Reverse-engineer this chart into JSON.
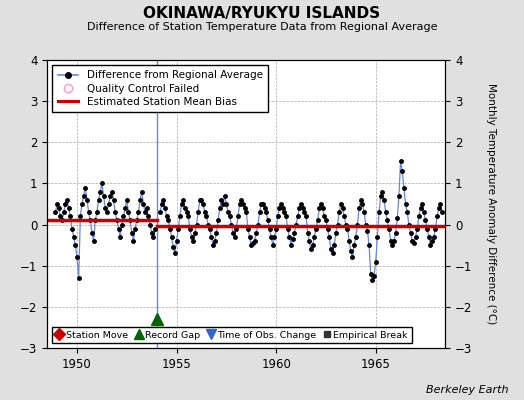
{
  "title": "OKINAWA/RYUKYU ISLANDS",
  "subtitle": "Difference of Station Temperature Data from Regional Average",
  "ylabel_right": "Monthly Temperature Anomaly Difference (°C)",
  "xlim": [
    1948.5,
    1968.5
  ],
  "ylim": [
    -3,
    4
  ],
  "yticks": [
    -3,
    -2,
    -1,
    0,
    1,
    2,
    3,
    4
  ],
  "xticks": [
    1950,
    1955,
    1960,
    1965
  ],
  "background_color": "#e0e0e0",
  "plot_bg_color": "#ffffff",
  "grid_color": "#aaaaaa",
  "line_color": "#6688dd",
  "marker_color": "#000000",
  "bias_color": "#cc0000",
  "vertical_line_x": 1954.0,
  "vertical_line_color": "#6688dd",
  "record_gap_x": 1954.0,
  "record_gap_y": -2.3,
  "bias_level_1": 0.1,
  "bias_x1_start": 1948.5,
  "bias_x1_end": 1954.0,
  "bias_level_2": -0.04,
  "bias_x2_start": 1954.0,
  "bias_x2_end": 1968.5,
  "watermark": "Berkeley Earth",
  "segment1_times": [
    1948.917,
    1949.0,
    1949.083,
    1949.167,
    1949.25,
    1949.333,
    1949.417,
    1949.5,
    1949.583,
    1949.667,
    1949.75,
    1949.833,
    1949.917,
    1950.0,
    1950.083,
    1950.167,
    1950.25,
    1950.333,
    1950.417,
    1950.5,
    1950.583,
    1950.667,
    1950.75,
    1950.833,
    1950.917,
    1951.0,
    1951.083,
    1951.167,
    1951.25,
    1951.333,
    1951.417,
    1951.5,
    1951.583,
    1951.667,
    1951.75,
    1951.833,
    1951.917,
    1952.0,
    1952.083,
    1952.167,
    1952.25,
    1952.333,
    1952.417,
    1952.5,
    1952.583,
    1952.667,
    1952.75,
    1952.833,
    1952.917,
    1953.0,
    1953.083,
    1953.167,
    1953.25,
    1953.333,
    1953.417,
    1953.5,
    1953.583,
    1953.667,
    1953.75,
    1953.833,
    1953.917
  ],
  "segment1_values": [
    0.3,
    0.5,
    0.4,
    0.2,
    0.1,
    0.3,
    0.5,
    0.6,
    0.4,
    0.2,
    -0.1,
    -0.3,
    -0.5,
    -0.8,
    -1.3,
    0.2,
    0.5,
    0.7,
    0.9,
    0.6,
    0.3,
    0.1,
    -0.2,
    -0.4,
    0.1,
    0.3,
    0.6,
    0.8,
    1.0,
    0.7,
    0.4,
    0.3,
    0.5,
    0.7,
    0.8,
    0.6,
    0.3,
    0.1,
    -0.1,
    -0.3,
    0.0,
    0.2,
    0.4,
    0.6,
    0.3,
    0.1,
    -0.2,
    -0.4,
    -0.1,
    0.1,
    0.3,
    0.6,
    0.8,
    0.5,
    0.3,
    0.4,
    0.2,
    0.0,
    -0.2,
    -0.3,
    -0.1
  ],
  "segment2_times": [
    1954.167,
    1954.25,
    1954.333,
    1954.417,
    1954.5,
    1954.583,
    1954.667,
    1954.75,
    1954.833,
    1954.917,
    1955.0,
    1955.083,
    1955.167,
    1955.25,
    1955.333,
    1955.417,
    1955.5,
    1955.583,
    1955.667,
    1955.75,
    1955.833,
    1955.917,
    1956.0,
    1956.083,
    1956.167,
    1956.25,
    1956.333,
    1956.417,
    1956.5,
    1956.583,
    1956.667,
    1956.75,
    1956.833,
    1956.917,
    1957.0,
    1957.083,
    1957.167,
    1957.25,
    1957.333,
    1957.417,
    1957.5,
    1957.583,
    1957.667,
    1957.75,
    1957.833,
    1957.917,
    1958.0,
    1958.083,
    1958.167,
    1958.25,
    1958.333,
    1958.417,
    1958.5,
    1958.583,
    1958.667,
    1958.75,
    1958.833,
    1958.917,
    1959.0,
    1959.083,
    1959.167,
    1959.25,
    1959.333,
    1959.417,
    1959.5,
    1959.583,
    1959.667,
    1959.75,
    1959.833,
    1959.917,
    1960.0,
    1960.083,
    1960.167,
    1960.25,
    1960.333,
    1960.417,
    1960.5,
    1960.583,
    1960.667,
    1960.75,
    1960.833,
    1960.917,
    1961.0,
    1961.083,
    1961.167,
    1961.25,
    1961.333,
    1961.417,
    1961.5,
    1961.583,
    1961.667,
    1961.75,
    1961.833,
    1961.917,
    1962.0,
    1962.083,
    1962.167,
    1962.25,
    1962.333,
    1962.417,
    1962.5,
    1962.583,
    1962.667,
    1962.75,
    1962.833,
    1962.917,
    1963.0,
    1963.083,
    1963.167,
    1963.25,
    1963.333,
    1963.417,
    1963.5,
    1963.583,
    1963.667,
    1963.75,
    1963.833,
    1963.917,
    1964.0,
    1964.083,
    1964.167,
    1964.25,
    1964.333,
    1964.417,
    1964.5,
    1964.583,
    1964.667,
    1964.75,
    1964.833,
    1964.917,
    1965.0,
    1965.083,
    1965.167,
    1965.25,
    1965.333,
    1965.417,
    1965.5,
    1965.583,
    1965.667,
    1965.75,
    1965.833,
    1965.917,
    1966.0,
    1966.083,
    1966.167,
    1966.25,
    1966.333,
    1966.417,
    1966.5,
    1966.583,
    1966.667,
    1966.75,
    1966.833,
    1966.917,
    1967.0,
    1967.083,
    1967.167,
    1967.25,
    1967.333,
    1967.417,
    1967.5,
    1967.583,
    1967.667,
    1967.75,
    1967.833,
    1967.917,
    1968.0,
    1968.083,
    1968.167,
    1968.25,
    1968.333
  ],
  "segment2_values": [
    0.3,
    0.5,
    0.6,
    0.4,
    0.2,
    0.1,
    -0.1,
    -0.3,
    -0.55,
    -0.7,
    -0.4,
    -0.1,
    0.2,
    0.5,
    0.6,
    0.4,
    0.3,
    0.2,
    -0.1,
    -0.3,
    -0.4,
    -0.2,
    0.0,
    0.3,
    0.6,
    0.6,
    0.5,
    0.3,
    0.2,
    0.0,
    -0.1,
    -0.3,
    -0.5,
    -0.4,
    -0.2,
    0.1,
    0.4,
    0.6,
    0.5,
    0.7,
    0.5,
    0.3,
    0.2,
    0.0,
    -0.2,
    -0.3,
    -0.1,
    0.2,
    0.5,
    0.6,
    0.5,
    0.4,
    0.3,
    -0.1,
    -0.3,
    -0.5,
    -0.45,
    -0.4,
    -0.2,
    0.0,
    0.3,
    0.5,
    0.5,
    0.4,
    0.3,
    0.1,
    -0.1,
    -0.3,
    -0.5,
    -0.3,
    -0.1,
    0.2,
    0.4,
    0.5,
    0.4,
    0.3,
    0.2,
    -0.1,
    -0.3,
    -0.5,
    -0.35,
    -0.2,
    0.0,
    0.2,
    0.4,
    0.5,
    0.4,
    0.3,
    0.2,
    -0.2,
    -0.4,
    -0.6,
    -0.5,
    -0.3,
    -0.1,
    0.1,
    0.4,
    0.5,
    0.4,
    0.2,
    0.1,
    -0.1,
    -0.3,
    -0.6,
    -0.7,
    -0.5,
    -0.2,
    0.0,
    0.3,
    0.5,
    0.4,
    0.2,
    0.0,
    -0.1,
    -0.4,
    -0.65,
    -0.8,
    -0.5,
    -0.3,
    0.0,
    0.4,
    0.6,
    0.5,
    0.3,
    0.0,
    -0.15,
    -0.5,
    -1.2,
    -1.35,
    -1.25,
    -0.9,
    -0.3,
    0.3,
    0.7,
    0.8,
    0.6,
    0.3,
    0.1,
    -0.1,
    -0.4,
    -0.5,
    -0.4,
    -0.2,
    0.15,
    0.7,
    1.55,
    1.3,
    0.9,
    0.5,
    0.3,
    0.0,
    -0.2,
    -0.4,
    -0.45,
    -0.3,
    -0.1,
    0.2,
    0.4,
    0.5,
    0.3,
    0.1,
    -0.1,
    -0.3,
    -0.5,
    -0.4,
    -0.3,
    -0.1,
    0.2,
    0.4,
    0.5,
    0.3
  ]
}
